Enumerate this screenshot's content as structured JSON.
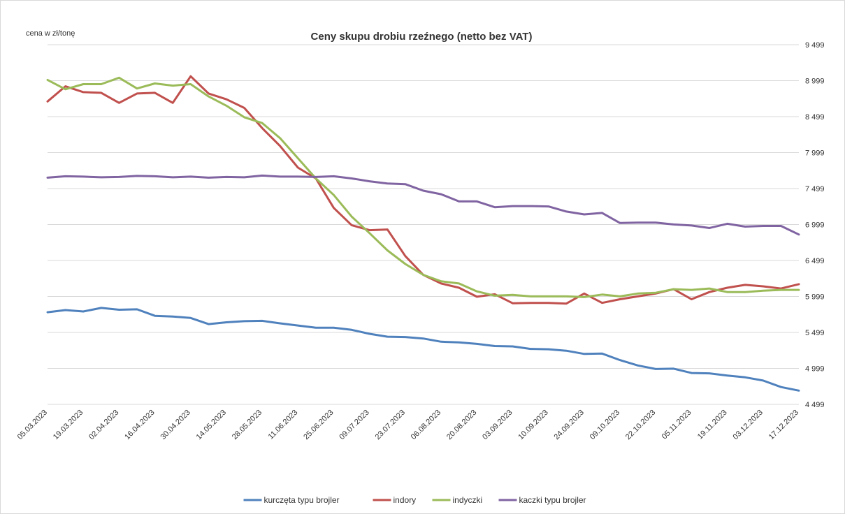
{
  "chart_data": {
    "type": "line",
    "title": "Ceny skupu drobiu rzeźnego (netto bez VAT)",
    "ylabel": "cena w zł/tonę",
    "xlabel": "",
    "ylim": [
      4499,
      9499
    ],
    "y_ticks": [
      "4 499",
      "4 999",
      "5 499",
      "5 999",
      "6 499",
      "6 999",
      "7 499",
      "7 999",
      "8 499",
      "8 999",
      "9 499"
    ],
    "y_tick_values": [
      4499,
      4999,
      5499,
      5999,
      6499,
      6999,
      7499,
      7999,
      8499,
      8999,
      9499
    ],
    "grid": true,
    "legend_position": "bottom",
    "x": [
      "05.03.2023",
      "12.03.2023",
      "19.03.2023",
      "26.03.2023",
      "02.04.2023",
      "09.04.2023",
      "16.04.2023",
      "23.04.2023",
      "30.04.2023",
      "07.05.2023",
      "14.05.2023",
      "21.05.2023",
      "28.05.2023",
      "04.06.2023",
      "11.06.2023",
      "18.06.2023",
      "25.06.2023",
      "02.07.2023",
      "09.07.2023",
      "16.07.2023",
      "23.07.2023",
      "30.07.2023",
      "06.08.2023",
      "13.08.2023",
      "20.08.2023",
      "27.08.2023",
      "03.09.2023",
      "06.09.2023",
      "10.09.2023",
      "17.09.2023",
      "24.09.2023",
      "01.10.2023",
      "09.10.2023",
      "15.10.2023",
      "22.10.2023",
      "29.10.2023",
      "05.11.2023",
      "12.11.2023",
      "19.11.2023",
      "26.11.2023",
      "03.12.2023",
      "10.12.2023",
      "17.12.2023"
    ],
    "x_tick_labels": [
      "05.03.2023",
      "19.03.2023",
      "02.04.2023",
      "16.04.2023",
      "30.04.2023",
      "14.05.2023",
      "28.05.2023",
      "11.06.2023",
      "25.06.2023",
      "09.07.2023",
      "23.07.2023",
      "06.08.2023",
      "20.08.2023",
      "03.09.2023",
      "10.09.2023",
      "24.09.2023",
      "09.10.2023",
      "22.10.2023",
      "05.11.2023",
      "19.11.2023",
      "03.12.2023",
      "17.12.2023"
    ],
    "series": [
      {
        "name": "kurczęta typu brojler",
        "color": "#4f81bd",
        "values": [
          5780,
          5810,
          5790,
          5840,
          5815,
          5820,
          5730,
          5720,
          5700,
          5615,
          5640,
          5655,
          5660,
          5625,
          5595,
          5565,
          5565,
          5535,
          5480,
          5440,
          5435,
          5415,
          5370,
          5360,
          5340,
          5310,
          5305,
          5270,
          5265,
          5245,
          5200,
          5205,
          5115,
          5040,
          4990,
          4995,
          4935,
          4930,
          4900,
          4875,
          4830,
          4740,
          4690
        ]
      },
      {
        "name": "indory",
        "color": "#c0504d",
        "values": [
          8710,
          8920,
          8840,
          8830,
          8690,
          8820,
          8830,
          8690,
          9060,
          8820,
          8740,
          8620,
          8340,
          8090,
          7790,
          7640,
          7230,
          6990,
          6920,
          6930,
          6560,
          6300,
          6180,
          6120,
          5995,
          6030,
          5905,
          5910,
          5910,
          5900,
          6040,
          5910,
          5960,
          6000,
          6040,
          6100,
          5960,
          6060,
          6120,
          6160,
          6140,
          6110,
          6170
        ]
      },
      {
        "name": "indyczki",
        "color": "#9bbb59",
        "values": [
          9010,
          8880,
          8950,
          8950,
          9040,
          8890,
          8960,
          8930,
          8950,
          8780,
          8650,
          8490,
          8410,
          8200,
          7920,
          7640,
          7410,
          7110,
          6880,
          6640,
          6450,
          6300,
          6210,
          6180,
          6070,
          6010,
          6020,
          6000,
          6000,
          6000,
          5990,
          6025,
          6000,
          6040,
          6050,
          6100,
          6090,
          6110,
          6060,
          6060,
          6080,
          6090,
          6090
        ]
      },
      {
        "name": "kaczki typu brojler",
        "color": "#8064a2",
        "values": [
          7650,
          7670,
          7665,
          7655,
          7660,
          7675,
          7670,
          7655,
          7665,
          7650,
          7660,
          7655,
          7680,
          7665,
          7665,
          7660,
          7670,
          7640,
          7600,
          7570,
          7560,
          7470,
          7420,
          7320,
          7320,
          7240,
          7255,
          7255,
          7250,
          7180,
          7140,
          7160,
          7020,
          7025,
          7025,
          7000,
          6985,
          6950,
          7010,
          6970,
          6980,
          6980,
          6860
        ]
      }
    ]
  }
}
